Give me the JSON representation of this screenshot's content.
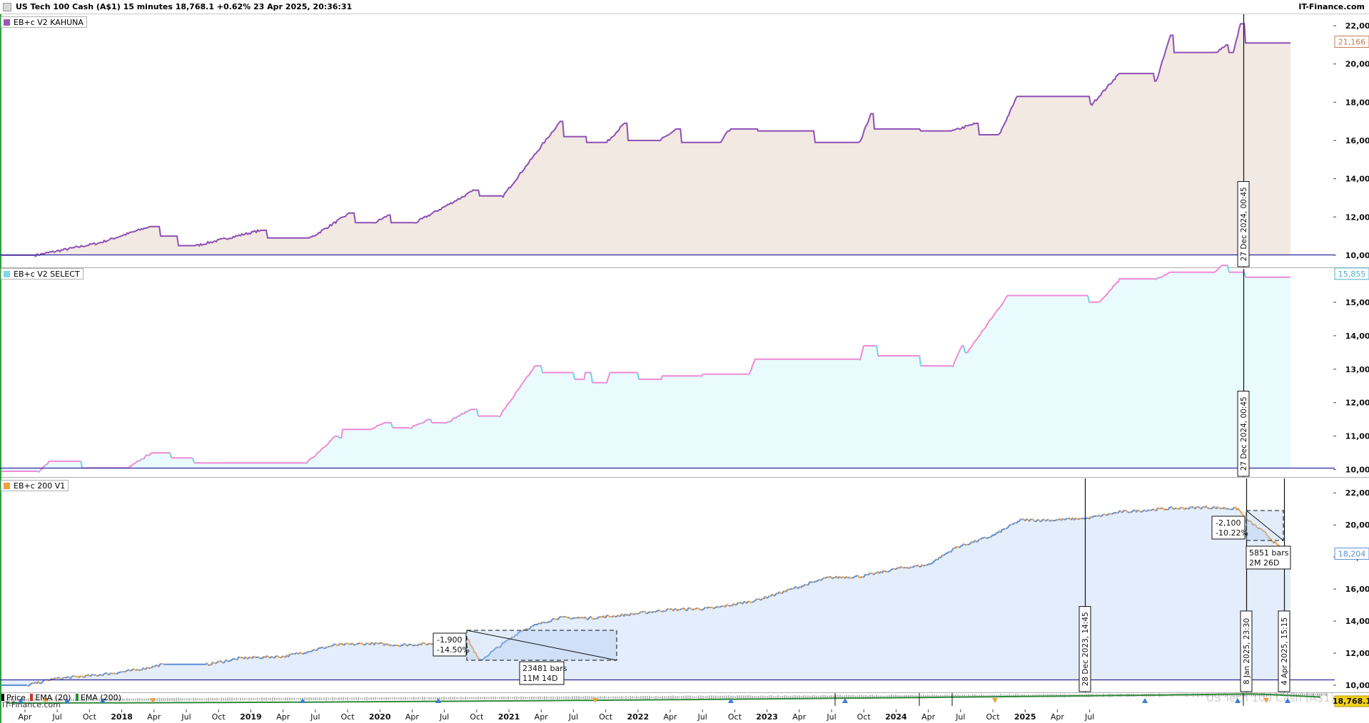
{
  "header": {
    "title": "US Tech 100 Cash (A$1) 15 minutes 18,768.1 +0.62% 23 Apr 2025, 20:36:31",
    "brand": "IT-Finance.com"
  },
  "panels": [
    {
      "legend": "EB+c  V2 KAHUNA",
      "legend_color": "#9b59b6",
      "fill_color": "#f2e9e2",
      "line_color": "#8e4fb5",
      "price_badge": "21,166",
      "price_badge_color": "#c97a52",
      "baseline_value": 10000,
      "axis_ticks": [
        "22,000",
        "20,000",
        "18,000",
        "16,000",
        "14,000",
        "12,000",
        "10,000"
      ],
      "axis_values": [
        22000,
        20000,
        18000,
        16000,
        14000,
        12000,
        10000
      ],
      "crosshair_label": "27 Dec 2024, 00:45"
    },
    {
      "legend": "EB+c  V2 SELECT",
      "legend_color": "#7fd6e8",
      "fill_color": "#e9fbfd",
      "line_color": "#f08ad6",
      "line_color_up": "#6bd3ea",
      "price_badge": "15,855",
      "price_badge_color": "#4fb0c8",
      "baseline_value": 10000,
      "axis_ticks": [
        "15,000",
        "14,000",
        "13,000",
        "12,000",
        "11,000",
        "10,000"
      ],
      "axis_values": [
        15000,
        14000,
        13000,
        12000,
        11000,
        10000
      ],
      "crosshair_label": "27 Dec 2024, 00:45"
    },
    {
      "legend": "EB+c 200  V1",
      "legend_color": "#f0a040",
      "fill_color": "#e4edfb",
      "line_color": "#5b8fd9",
      "line_color_alt": "#f0a040",
      "price_badge": "18,204",
      "price_badge_color": "#5b8fd9",
      "baseline_value": 10000,
      "axis_ticks": [
        "22,000",
        "20,000",
        "18,000",
        "16,000",
        "14,000",
        "12,000",
        "10,000"
      ],
      "axis_values": [
        22000,
        20000,
        18000,
        16000,
        14000,
        12000,
        10000
      ],
      "vlines": [
        {
          "label": "28 Dec 2023, 14:45"
        },
        {
          "label": "8 Jan 2025, 23:30"
        },
        {
          "label": "4 Apr 2025, 15:15"
        }
      ],
      "measurements": [
        {
          "change": "-1,900",
          "pct": "-14.50%",
          "bars": "23481 bars",
          "duration": "11M 14D"
        },
        {
          "change": "-2,100",
          "pct": "-10.22%",
          "bars": "5851 bars",
          "duration": "2M 26D"
        }
      ]
    }
  ],
  "price_panel": {
    "legend": [
      {
        "label": "Price",
        "color": "#000000"
      },
      {
        "label": "EMA (20)",
        "color": "#d03030"
      },
      {
        "label": "EMA (200)",
        "color": "#2e8b3a"
      }
    ],
    "price_badge": "18,768.1",
    "price_badge_color": "#f3d11a",
    "watermark": "US Tech 100 Cash (A$1)",
    "sub_brand": "IT-Finance.com"
  },
  "time_axis": {
    "labels": [
      "Apr",
      "Jul",
      "Oct",
      "2018",
      "Apr",
      "Jul",
      "Oct",
      "2019",
      "Apr",
      "Jul",
      "Oct",
      "2020",
      "Apr",
      "Jul",
      "Oct",
      "2021",
      "Apr",
      "Jul",
      "Oct",
      "2022",
      "Apr",
      "Jul",
      "Oct",
      "2023",
      "Apr",
      "Jul",
      "Oct",
      "2024",
      "Apr",
      "Jul",
      "Oct",
      "2025",
      "Apr",
      "Jul"
    ],
    "year_labels": [
      "2018",
      "2019",
      "2020",
      "2021",
      "2022",
      "2023",
      "2024",
      "2025"
    ]
  },
  "colors": {
    "baseline": "#2c2a9e",
    "grid_border": "#b0b0b0"
  }
}
